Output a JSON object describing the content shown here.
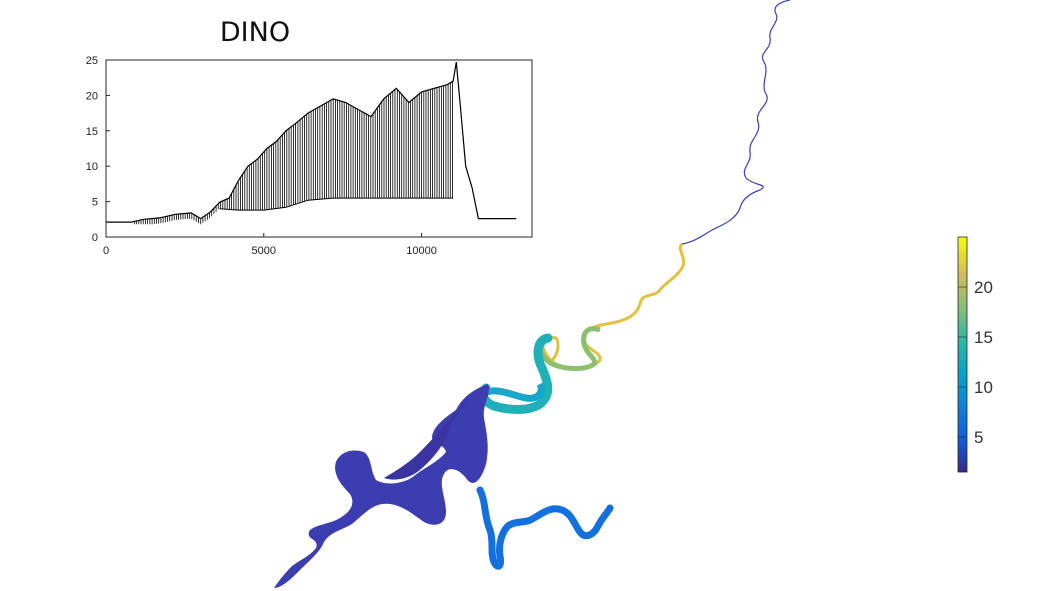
{
  "chart_data": [
    {
      "type": "line",
      "title": "DINO",
      "xlabel": "",
      "ylabel": "",
      "xlim": [
        0,
        13500
      ],
      "ylim": [
        0,
        25
      ],
      "x_ticks": [
        "0",
        "5000",
        "10000"
      ],
      "y_ticks": [
        "0",
        "5",
        "10",
        "15",
        "20",
        "25"
      ],
      "grid": false,
      "legend": "none",
      "line_color": "#000000",
      "series": [
        {
          "x": [
            0,
            800,
            1200,
            1700,
            2200,
            2700,
            3000,
            3300,
            3600,
            3900,
            4200,
            4500,
            4800,
            5100,
            5400,
            5700,
            6000,
            6400,
            6800,
            7200,
            7600,
            8000,
            8400,
            8800,
            9200,
            9600,
            10000,
            10400,
            10800,
            11000,
            11100,
            11200,
            11400,
            11600,
            11800,
            12200,
            13000
          ],
          "y": [
            2.1,
            2.1,
            2.5,
            2.7,
            3.2,
            3.4,
            2.6,
            3.5,
            4.9,
            5.5,
            8.0,
            10.0,
            11.0,
            12.5,
            13.5,
            15.0,
            16.0,
            17.5,
            18.5,
            19.5,
            19.0,
            18.0,
            17.0,
            19.5,
            21.0,
            19.0,
            20.5,
            21.0,
            21.5,
            22.0,
            24.7,
            20.0,
            10.0,
            7.0,
            2.6,
            2.6,
            2.6
          ]
        },
        {
          "name": "",
          "x": [
            3600,
            4200,
            5000,
            5700,
            6400,
            7200,
            8000,
            8800,
            9600,
            10400,
            11000
          ],
          "y": [
            4.0,
            3.8,
            3.8,
            4.2,
            5.2,
            5.5,
            5.5,
            5.5,
            5.5,
            5.5,
            5.5
          ]
        }
      ]
    },
    {
      "type": "heatmap",
      "colormap": "parula",
      "clim": [
        1.5,
        25
      ],
      "colorbar_ticks": [
        "5",
        "10",
        "15",
        "20"
      ],
      "colorbar_values": [
        5,
        10,
        15,
        20
      ]
    }
  ]
}
